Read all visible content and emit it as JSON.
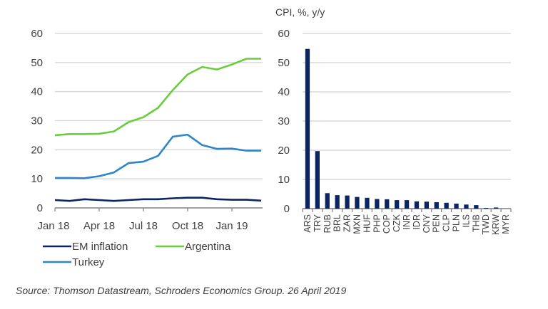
{
  "chart_data": [
    {
      "type": "line",
      "title": "",
      "xlabel": "",
      "ylabel": "",
      "ylim": [
        0,
        60
      ],
      "yticks": [
        "0",
        "10",
        "20",
        "30",
        "40",
        "50",
        "60"
      ],
      "xtick_labels": [
        "Jan 18",
        "Apr 18",
        "Jul 18",
        "Oct 18",
        "Jan 19"
      ],
      "grid": true,
      "legend_position": "bottom",
      "x": [
        "Jan 18",
        "Feb 18",
        "Mar 18",
        "Apr 18",
        "May 18",
        "Jun 18",
        "Jul 18",
        "Aug 18",
        "Sep 18",
        "Oct 18",
        "Nov 18",
        "Dec 18",
        "Jan 19",
        "Feb 19",
        "Mar 19"
      ],
      "series": [
        {
          "name": "EM inflation",
          "color": "#0b2561",
          "values": [
            2.7,
            2.4,
            3.0,
            2.7,
            2.4,
            2.7,
            3.0,
            3.0,
            3.3,
            3.5,
            3.5,
            3.0,
            2.8,
            2.8,
            2.5
          ]
        },
        {
          "name": "Argentina",
          "color": "#6acd3b",
          "values": [
            25.0,
            25.4,
            25.4,
            25.5,
            26.3,
            29.5,
            31.2,
            34.4,
            40.5,
            45.9,
            48.5,
            47.6,
            49.3,
            51.3,
            51.3
          ]
        },
        {
          "name": "Turkey",
          "color": "#2c86c8",
          "values": [
            10.3,
            10.3,
            10.2,
            10.9,
            12.2,
            15.4,
            15.9,
            17.9,
            24.5,
            25.2,
            21.6,
            20.3,
            20.4,
            19.7,
            19.7
          ]
        }
      ]
    },
    {
      "type": "bar",
      "title": "CPI, %, y/y",
      "xlabel": "",
      "ylabel": "",
      "ylim": [
        0,
        60
      ],
      "yticks": [
        "0",
        "10",
        "20",
        "30",
        "40",
        "50",
        "60"
      ],
      "grid": true,
      "color": "#0b2561",
      "categories": [
        "ARS",
        "TRY",
        "RUB",
        "BRL",
        "ZAR",
        "MXN",
        "HUF",
        "PHP",
        "COP",
        "CZK",
        "INR",
        "IDR",
        "CNY",
        "PEN",
        "CLP",
        "PLN",
        "ILS",
        "THB",
        "TWD",
        "KRW",
        "MYR"
      ],
      "values": [
        54.7,
        19.7,
        5.3,
        4.6,
        4.5,
        4.0,
        3.7,
        3.3,
        3.2,
        2.9,
        2.9,
        2.5,
        2.4,
        2.2,
        2.0,
        1.7,
        1.4,
        1.2,
        0.2,
        0.4,
        -0.4
      ]
    }
  ],
  "left": {
    "source_note": ""
  },
  "footer": {
    "source": "Source: Thomson Datastream, Schroders Economics Group. 26 April 2019"
  }
}
